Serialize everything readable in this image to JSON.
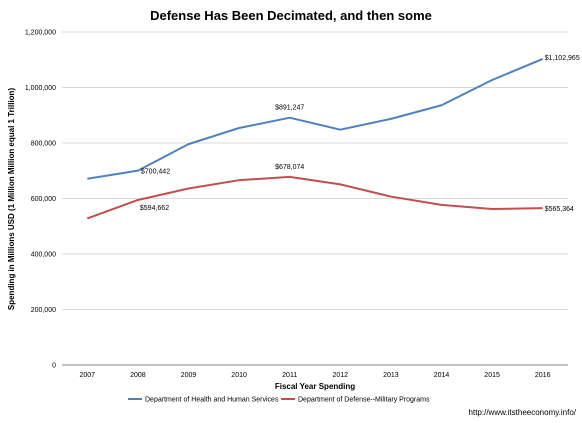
{
  "chart_data": {
    "type": "line",
    "title": "Defense Has Been Decimated, and then some",
    "xlabel": "Fiscal Year Spending",
    "ylabel": "Spending in Millions USD (1 Million Million equal 1 Trillion)",
    "categories": [
      "2007",
      "2008",
      "2009",
      "2010",
      "2011",
      "2012",
      "2013",
      "2014",
      "2015",
      "2016"
    ],
    "ylim": [
      0,
      1200000
    ],
    "yticks": [
      0,
      200000,
      400000,
      600000,
      800000,
      1000000,
      1200000
    ],
    "ytick_labels": [
      "0",
      "200,000",
      "400,000",
      "600,000",
      "800,000",
      "1,000,000",
      "1,200,000"
    ],
    "grid": true,
    "legend_position": "bottom",
    "series": [
      {
        "name": "Department of Health and Human Services",
        "color": "#4f81bd",
        "values": [
          671000,
          700442,
          796000,
          854000,
          891247,
          848000,
          887000,
          936000,
          1027000,
          1102965
        ]
      },
      {
        "name": "Department of Defense--Military Programs",
        "color": "#c0504d",
        "values": [
          528000,
          594662,
          636000,
          666000,
          678074,
          651000,
          607000,
          577000,
          562000,
          565364
        ]
      }
    ],
    "annotations": [
      {
        "series": 0,
        "index": 1,
        "text": "$700,442"
      },
      {
        "series": 0,
        "index": 4,
        "text": "$891,247"
      },
      {
        "series": 0,
        "index": 9,
        "text": "$1,102,965"
      },
      {
        "series": 1,
        "index": 1,
        "text": "$594,662"
      },
      {
        "series": 1,
        "index": 4,
        "text": "$678,074"
      },
      {
        "series": 1,
        "index": 9,
        "text": "$565,364"
      }
    ]
  },
  "footer": {
    "source_url": "http://www.itstheeconomy.info/"
  }
}
